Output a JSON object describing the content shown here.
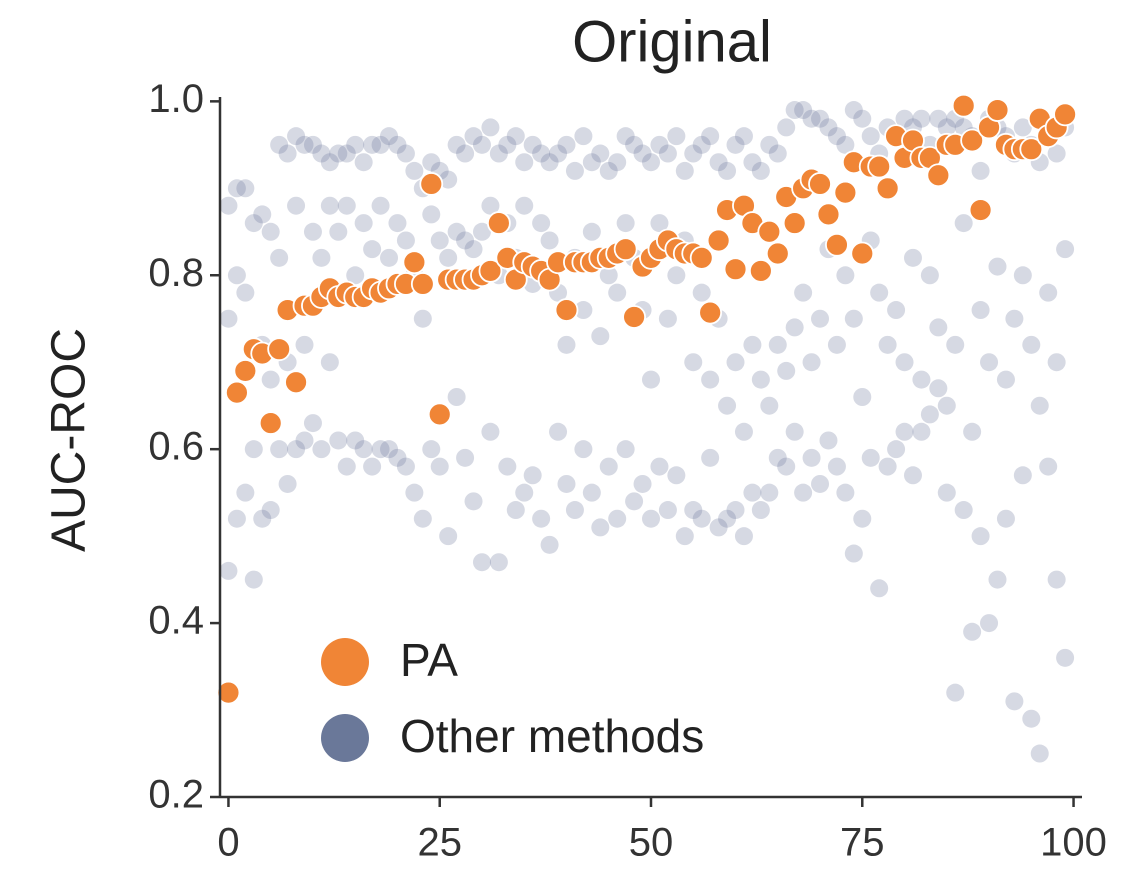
{
  "chart_data": {
    "type": "scatter",
    "title": "Original",
    "y_label": "AUC-ROC",
    "xlim": [
      -1,
      101
    ],
    "ylim": [
      0.2,
      1.005
    ],
    "xticks": [
      0,
      25,
      50,
      75,
      100
    ],
    "yticks": [
      0.2,
      0.4,
      0.6,
      0.8,
      {
        "value": 1,
        "label": "1.0"
      }
    ],
    "legend": "lower left",
    "series": [
      {
        "name": "Other methods",
        "color": "#6a7899",
        "x": [
          0,
          0,
          0,
          1,
          1,
          1,
          2,
          2,
          2,
          3,
          3,
          3,
          4,
          4,
          4,
          5,
          5,
          5,
          6,
          6,
          6,
          7,
          7,
          7,
          8,
          8,
          8,
          9,
          9,
          9,
          10,
          10,
          10,
          11,
          11,
          11,
          12,
          12,
          12,
          13,
          13,
          13,
          14,
          14,
          14,
          15,
          15,
          15,
          16,
          16,
          16,
          17,
          17,
          17,
          18,
          18,
          18,
          19,
          19,
          19,
          20,
          20,
          20,
          21,
          21,
          21,
          22,
          22,
          22,
          23,
          23,
          23,
          24,
          24,
          24,
          25,
          25,
          25,
          26,
          26,
          26,
          27,
          27,
          27,
          28,
          28,
          28,
          29,
          29,
          29,
          30,
          30,
          30,
          31,
          31,
          31,
          32,
          32,
          32,
          33,
          33,
          33,
          34,
          34,
          34,
          35,
          35,
          35,
          36,
          36,
          36,
          37,
          37,
          37,
          38,
          38,
          38,
          39,
          39,
          39,
          40,
          40,
          40,
          41,
          41,
          41,
          42,
          42,
          42,
          43,
          43,
          43,
          44,
          44,
          44,
          45,
          45,
          45,
          46,
          46,
          46,
          47,
          47,
          47,
          48,
          48,
          48,
          49,
          49,
          49,
          50,
          50,
          50,
          51,
          51,
          51,
          52,
          52,
          52,
          53,
          53,
          53,
          54,
          54,
          54,
          55,
          55,
          55,
          56,
          56,
          56,
          57,
          57,
          57,
          58,
          58,
          58,
          59,
          59,
          59,
          60,
          60,
          60,
          61,
          61,
          61,
          62,
          62,
          62,
          63,
          63,
          63,
          64,
          64,
          64,
          65,
          65,
          65,
          66,
          66,
          66,
          67,
          67,
          67,
          68,
          68,
          68,
          69,
          69,
          69,
          70,
          70,
          70,
          71,
          71,
          71,
          72,
          72,
          72,
          73,
          73,
          73,
          74,
          74,
          74,
          75,
          75,
          75,
          76,
          76,
          76,
          77,
          77,
          77,
          78,
          78,
          78,
          79,
          79,
          79,
          80,
          80,
          80,
          81,
          81,
          81,
          82,
          82,
          82,
          83,
          83,
          83,
          84,
          84,
          84,
          85,
          85,
          85,
          86,
          86,
          86,
          87,
          87,
          87,
          88,
          88,
          88,
          89,
          89,
          89,
          90,
          90,
          90,
          91,
          91,
          91,
          92,
          92,
          92,
          93,
          93,
          93,
          94,
          94,
          94,
          95,
          95,
          95,
          96,
          96,
          96,
          97,
          97,
          97,
          98,
          98,
          98,
          99,
          99,
          99
        ],
        "values": [
          0.88,
          0.75,
          0.46,
          0.9,
          0.8,
          0.52,
          0.9,
          0.78,
          0.55,
          0.86,
          0.6,
          0.45,
          0.87,
          0.72,
          0.52,
          0.85,
          0.68,
          0.53,
          0.95,
          0.82,
          0.6,
          0.94,
          0.7,
          0.56,
          0.96,
          0.88,
          0.6,
          0.95,
          0.72,
          0.61,
          0.95,
          0.85,
          0.63,
          0.94,
          0.82,
          0.6,
          0.93,
          0.88,
          0.7,
          0.94,
          0.85,
          0.61,
          0.94,
          0.88,
          0.58,
          0.95,
          0.8,
          0.61,
          0.93,
          0.86,
          0.6,
          0.95,
          0.83,
          0.58,
          0.95,
          0.88,
          0.6,
          0.96,
          0.82,
          0.6,
          0.95,
          0.86,
          0.59,
          0.94,
          0.84,
          0.58,
          0.92,
          0.8,
          0.55,
          0.9,
          0.75,
          0.52,
          0.93,
          0.87,
          0.6,
          0.92,
          0.84,
          0.58,
          0.91,
          0.82,
          0.5,
          0.95,
          0.85,
          0.66,
          0.94,
          0.84,
          0.59,
          0.96,
          0.83,
          0.54,
          0.95,
          0.85,
          0.47,
          0.97,
          0.88,
          0.62,
          0.94,
          0.8,
          0.47,
          0.95,
          0.86,
          0.58,
          0.96,
          0.82,
          0.53,
          0.93,
          0.88,
          0.55,
          0.95,
          0.79,
          0.57,
          0.94,
          0.86,
          0.52,
          0.93,
          0.84,
          0.49,
          0.94,
          0.78,
          0.62,
          0.95,
          0.72,
          0.56,
          0.92,
          0.82,
          0.53,
          0.96,
          0.76,
          0.6,
          0.93,
          0.85,
          0.55,
          0.94,
          0.73,
          0.51,
          0.92,
          0.8,
          0.58,
          0.93,
          0.78,
          0.52,
          0.96,
          0.86,
          0.6,
          0.95,
          0.82,
          0.54,
          0.94,
          0.76,
          0.56,
          0.93,
          0.68,
          0.52,
          0.95,
          0.86,
          0.58,
          0.94,
          0.75,
          0.53,
          0.96,
          0.8,
          0.57,
          0.92,
          0.84,
          0.5,
          0.94,
          0.7,
          0.53,
          0.95,
          0.78,
          0.52,
          0.96,
          0.68,
          0.59,
          0.93,
          0.75,
          0.51,
          0.92,
          0.65,
          0.52,
          0.95,
          0.7,
          0.53,
          0.96,
          0.62,
          0.5,
          0.93,
          0.72,
          0.55,
          0.92,
          0.68,
          0.53,
          0.95,
          0.65,
          0.55,
          0.94,
          0.72,
          0.59,
          0.97,
          0.69,
          0.58,
          0.99,
          0.74,
          0.62,
          0.99,
          0.78,
          0.55,
          0.98,
          0.7,
          0.59,
          0.98,
          0.75,
          0.56,
          0.97,
          0.83,
          0.61,
          0.96,
          0.72,
          0.58,
          0.95,
          0.8,
          0.55,
          0.99,
          0.75,
          0.48,
          0.98,
          0.66,
          0.52,
          0.96,
          0.84,
          0.59,
          0.94,
          0.78,
          0.44,
          0.97,
          0.72,
          0.58,
          0.96,
          0.76,
          0.6,
          0.98,
          0.7,
          0.62,
          0.97,
          0.82,
          0.57,
          0.98,
          0.68,
          0.62,
          0.95,
          0.8,
          0.64,
          0.98,
          0.74,
          0.67,
          0.97,
          0.65,
          0.55,
          0.98,
          0.72,
          0.32,
          0.97,
          0.86,
          0.53,
          0.96,
          0.62,
          0.39,
          0.92,
          0.76,
          0.5,
          0.98,
          0.7,
          0.4,
          0.97,
          0.81,
          0.45,
          0.96,
          0.68,
          0.52,
          0.94,
          0.75,
          0.31,
          0.97,
          0.8,
          0.57,
          0.95,
          0.72,
          0.29,
          0.93,
          0.65,
          0.25,
          0.96,
          0.78,
          0.58,
          0.94,
          0.7,
          0.45,
          0.97,
          0.83,
          0.36
        ]
      },
      {
        "name": "PA",
        "color": "#f08536",
        "x": [
          0,
          1,
          2,
          3,
          4,
          5,
          6,
          7,
          8,
          9,
          10,
          11,
          12,
          13,
          14,
          15,
          16,
          17,
          18,
          19,
          20,
          21,
          22,
          23,
          24,
          25,
          26,
          27,
          28,
          29,
          30,
          31,
          32,
          33,
          34,
          35,
          36,
          37,
          38,
          39,
          40,
          41,
          42,
          43,
          44,
          45,
          46,
          47,
          48,
          49,
          50,
          51,
          52,
          53,
          54,
          55,
          56,
          57,
          58,
          59,
          60,
          61,
          62,
          63,
          64,
          65,
          66,
          67,
          68,
          69,
          70,
          71,
          72,
          73,
          74,
          75,
          76,
          77,
          78,
          79,
          80,
          81,
          82,
          83,
          84,
          85,
          86,
          87,
          88,
          89,
          90,
          91,
          92,
          93,
          94,
          95,
          96,
          97,
          98,
          99
        ],
        "values": [
          0.32,
          0.665,
          0.69,
          0.715,
          0.71,
          0.63,
          0.715,
          0.76,
          0.677,
          0.765,
          0.765,
          0.775,
          0.785,
          0.775,
          0.78,
          0.775,
          0.775,
          0.785,
          0.78,
          0.785,
          0.79,
          0.79,
          0.815,
          0.79,
          0.905,
          0.64,
          0.795,
          0.795,
          0.795,
          0.795,
          0.8,
          0.805,
          0.86,
          0.82,
          0.795,
          0.815,
          0.81,
          0.805,
          0.795,
          0.815,
          0.76,
          0.815,
          0.815,
          0.815,
          0.82,
          0.82,
          0.825,
          0.83,
          0.752,
          0.81,
          0.82,
          0.83,
          0.84,
          0.83,
          0.825,
          0.825,
          0.82,
          0.757,
          0.84,
          0.875,
          0.807,
          0.88,
          0.86,
          0.805,
          0.85,
          0.825,
          0.89,
          0.86,
          0.9,
          0.91,
          0.905,
          0.87,
          0.835,
          0.895,
          0.93,
          0.825,
          0.925,
          0.925,
          0.9,
          0.96,
          0.935,
          0.955,
          0.935,
          0.935,
          0.915,
          0.95,
          0.95,
          0.995,
          0.955,
          0.875,
          0.97,
          0.99,
          0.95,
          0.945,
          0.945,
          0.945,
          0.98,
          0.96,
          0.97,
          0.985
        ]
      }
    ]
  }
}
